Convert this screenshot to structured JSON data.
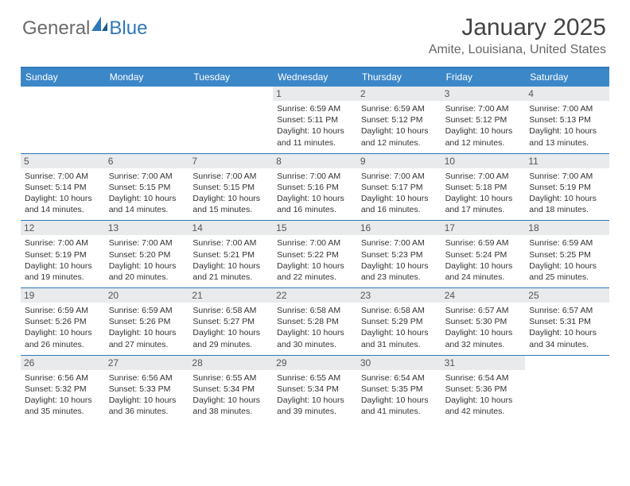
{
  "logo": {
    "text1": "General",
    "text2": "Blue"
  },
  "title": "January 2025",
  "location": "Amite, Louisiana, United States",
  "colors": {
    "header_bg": "#3b87c8",
    "border": "#2f78b9",
    "date_bg": "#e8eaec",
    "text": "#333333",
    "muted": "#666666"
  },
  "day_names": [
    "Sunday",
    "Monday",
    "Tuesday",
    "Wednesday",
    "Thursday",
    "Friday",
    "Saturday"
  ],
  "weeks": [
    [
      {
        "empty": true
      },
      {
        "empty": true
      },
      {
        "empty": true
      },
      {
        "date": "1",
        "sunrise": "6:59 AM",
        "sunset": "5:11 PM",
        "dh": 10,
        "dm": 11
      },
      {
        "date": "2",
        "sunrise": "6:59 AM",
        "sunset": "5:12 PM",
        "dh": 10,
        "dm": 12
      },
      {
        "date": "3",
        "sunrise": "7:00 AM",
        "sunset": "5:12 PM",
        "dh": 10,
        "dm": 12
      },
      {
        "date": "4",
        "sunrise": "7:00 AM",
        "sunset": "5:13 PM",
        "dh": 10,
        "dm": 13
      }
    ],
    [
      {
        "date": "5",
        "sunrise": "7:00 AM",
        "sunset": "5:14 PM",
        "dh": 10,
        "dm": 14
      },
      {
        "date": "6",
        "sunrise": "7:00 AM",
        "sunset": "5:15 PM",
        "dh": 10,
        "dm": 14
      },
      {
        "date": "7",
        "sunrise": "7:00 AM",
        "sunset": "5:15 PM",
        "dh": 10,
        "dm": 15
      },
      {
        "date": "8",
        "sunrise": "7:00 AM",
        "sunset": "5:16 PM",
        "dh": 10,
        "dm": 16
      },
      {
        "date": "9",
        "sunrise": "7:00 AM",
        "sunset": "5:17 PM",
        "dh": 10,
        "dm": 16
      },
      {
        "date": "10",
        "sunrise": "7:00 AM",
        "sunset": "5:18 PM",
        "dh": 10,
        "dm": 17
      },
      {
        "date": "11",
        "sunrise": "7:00 AM",
        "sunset": "5:19 PM",
        "dh": 10,
        "dm": 18
      }
    ],
    [
      {
        "date": "12",
        "sunrise": "7:00 AM",
        "sunset": "5:19 PM",
        "dh": 10,
        "dm": 19
      },
      {
        "date": "13",
        "sunrise": "7:00 AM",
        "sunset": "5:20 PM",
        "dh": 10,
        "dm": 20
      },
      {
        "date": "14",
        "sunrise": "7:00 AM",
        "sunset": "5:21 PM",
        "dh": 10,
        "dm": 21
      },
      {
        "date": "15",
        "sunrise": "7:00 AM",
        "sunset": "5:22 PM",
        "dh": 10,
        "dm": 22
      },
      {
        "date": "16",
        "sunrise": "7:00 AM",
        "sunset": "5:23 PM",
        "dh": 10,
        "dm": 23
      },
      {
        "date": "17",
        "sunrise": "6:59 AM",
        "sunset": "5:24 PM",
        "dh": 10,
        "dm": 24
      },
      {
        "date": "18",
        "sunrise": "6:59 AM",
        "sunset": "5:25 PM",
        "dh": 10,
        "dm": 25
      }
    ],
    [
      {
        "date": "19",
        "sunrise": "6:59 AM",
        "sunset": "5:26 PM",
        "dh": 10,
        "dm": 26
      },
      {
        "date": "20",
        "sunrise": "6:59 AM",
        "sunset": "5:26 PM",
        "dh": 10,
        "dm": 27
      },
      {
        "date": "21",
        "sunrise": "6:58 AM",
        "sunset": "5:27 PM",
        "dh": 10,
        "dm": 29
      },
      {
        "date": "22",
        "sunrise": "6:58 AM",
        "sunset": "5:28 PM",
        "dh": 10,
        "dm": 30
      },
      {
        "date": "23",
        "sunrise": "6:58 AM",
        "sunset": "5:29 PM",
        "dh": 10,
        "dm": 31
      },
      {
        "date": "24",
        "sunrise": "6:57 AM",
        "sunset": "5:30 PM",
        "dh": 10,
        "dm": 32
      },
      {
        "date": "25",
        "sunrise": "6:57 AM",
        "sunset": "5:31 PM",
        "dh": 10,
        "dm": 34
      }
    ],
    [
      {
        "date": "26",
        "sunrise": "6:56 AM",
        "sunset": "5:32 PM",
        "dh": 10,
        "dm": 35
      },
      {
        "date": "27",
        "sunrise": "6:56 AM",
        "sunset": "5:33 PM",
        "dh": 10,
        "dm": 36
      },
      {
        "date": "28",
        "sunrise": "6:55 AM",
        "sunset": "5:34 PM",
        "dh": 10,
        "dm": 38
      },
      {
        "date": "29",
        "sunrise": "6:55 AM",
        "sunset": "5:34 PM",
        "dh": 10,
        "dm": 39
      },
      {
        "date": "30",
        "sunrise": "6:54 AM",
        "sunset": "5:35 PM",
        "dh": 10,
        "dm": 41
      },
      {
        "date": "31",
        "sunrise": "6:54 AM",
        "sunset": "5:36 PM",
        "dh": 10,
        "dm": 42
      },
      {
        "empty": true
      }
    ]
  ]
}
